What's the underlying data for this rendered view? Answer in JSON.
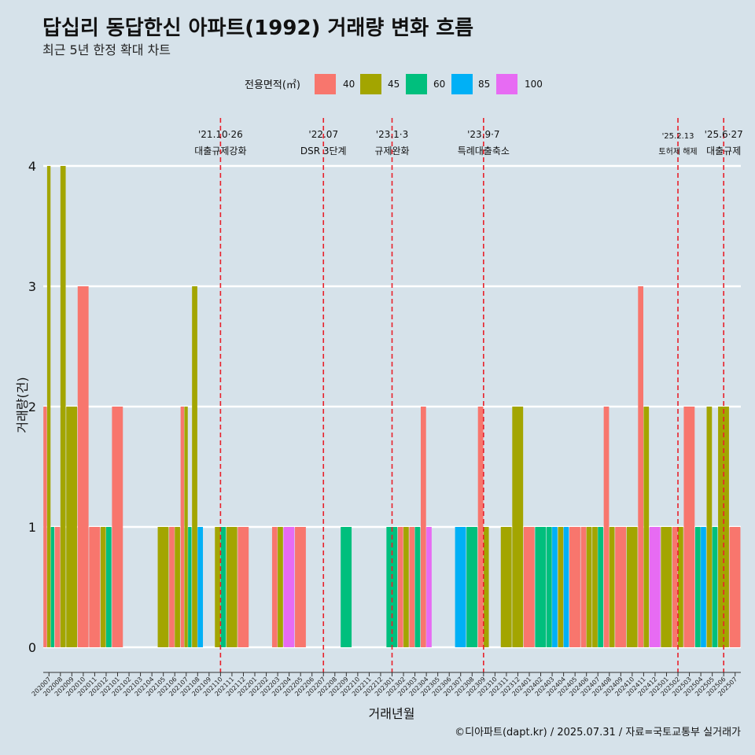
{
  "chart_data": {
    "type": "bar",
    "title": "답십리 동답한신 아파트(1992) 거래량 변화 흐름",
    "subtitle": "최근 5년 한정 확대 차트",
    "xlabel": "거래년월",
    "ylabel": "거래량(건)",
    "ylim": [
      0,
      4
    ],
    "yticks": [
      0,
      1,
      2,
      3,
      4
    ],
    "grid": true,
    "legend": {
      "title": "전용면적(㎡)",
      "position": "top",
      "entries": [
        {
          "label": "40",
          "color": "#f8766d"
        },
        {
          "label": "45",
          "color": "#a3a500"
        },
        {
          "label": "60",
          "color": "#00bf7d"
        },
        {
          "label": "85",
          "color": "#00b0f6"
        },
        {
          "label": "100",
          "color": "#e76bf3"
        }
      ]
    },
    "categories": [
      "202007",
      "202008",
      "202009",
      "202010",
      "202011",
      "202012",
      "202101",
      "202102",
      "202103",
      "202104",
      "202105",
      "202106",
      "202107",
      "202108",
      "202109",
      "202110",
      "202111",
      "202112",
      "202201",
      "202202",
      "202203",
      "202204",
      "202205",
      "202206",
      "202207",
      "202208",
      "202209",
      "202210",
      "202211",
      "202212",
      "202301",
      "202302",
      "202303",
      "202304",
      "202305",
      "202306",
      "202307",
      "202308",
      "202309",
      "202310",
      "202311",
      "202312",
      "202401",
      "202402",
      "202403",
      "202404",
      "202405",
      "202406",
      "202407",
      "202408",
      "202409",
      "202410",
      "202411",
      "202412",
      "202501",
      "202502",
      "202503",
      "202504",
      "202505",
      "202506",
      "202507"
    ],
    "data": {
      "202007": [
        {
          "area": "40",
          "count": 2
        },
        {
          "area": "45",
          "count": 4
        },
        {
          "area": "60",
          "count": 1
        }
      ],
      "202008": [
        {
          "area": "40",
          "count": 1
        },
        {
          "area": "45",
          "count": 4
        }
      ],
      "202009": [
        {
          "area": "45",
          "count": 2
        }
      ],
      "202010": [
        {
          "area": "40",
          "count": 3
        }
      ],
      "202011": [
        {
          "area": "40",
          "count": 1
        }
      ],
      "202012": [
        {
          "area": "45",
          "count": 1
        },
        {
          "area": "60",
          "count": 1
        }
      ],
      "202101": [
        {
          "area": "40",
          "count": 2
        }
      ],
      "202105": [
        {
          "area": "45",
          "count": 1
        }
      ],
      "202106": [
        {
          "area": "40",
          "count": 1
        },
        {
          "area": "45",
          "count": 1
        }
      ],
      "202107": [
        {
          "area": "40",
          "count": 2
        },
        {
          "area": "45",
          "count": 2
        },
        {
          "area": "60",
          "count": 1
        }
      ],
      "202108": [
        {
          "area": "45",
          "count": 3
        },
        {
          "area": "85",
          "count": 1
        }
      ],
      "202110": [
        {
          "area": "45",
          "count": 1
        },
        {
          "area": "60",
          "count": 1
        }
      ],
      "202111": [
        {
          "area": "45",
          "count": 1
        }
      ],
      "202112": [
        {
          "area": "40",
          "count": 1
        }
      ],
      "202203": [
        {
          "area": "40",
          "count": 1
        },
        {
          "area": "45",
          "count": 1
        }
      ],
      "202204": [
        {
          "area": "100",
          "count": 1
        }
      ],
      "202205": [
        {
          "area": "40",
          "count": 1
        }
      ],
      "202209": [
        {
          "area": "60",
          "count": 1
        }
      ],
      "202301": [
        {
          "area": "60",
          "count": 1
        }
      ],
      "202302": [
        {
          "area": "40",
          "count": 1
        },
        {
          "area": "45",
          "count": 1
        }
      ],
      "202303": [
        {
          "area": "40",
          "count": 1
        },
        {
          "area": "60",
          "count": 1
        }
      ],
      "202304": [
        {
          "area": "40",
          "count": 2
        },
        {
          "area": "100",
          "count": 1
        }
      ],
      "202307": [
        {
          "area": "85",
          "count": 1
        }
      ],
      "202308": [
        {
          "area": "60",
          "count": 1
        }
      ],
      "202309": [
        {
          "area": "40",
          "count": 2
        },
        {
          "area": "45",
          "count": 1
        }
      ],
      "202311": [
        {
          "area": "45",
          "count": 1
        }
      ],
      "202312": [
        {
          "area": "45",
          "count": 2
        }
      ],
      "202401": [
        {
          "area": "40",
          "count": 1
        }
      ],
      "202402": [
        {
          "area": "60",
          "count": 1
        }
      ],
      "202403": [
        {
          "area": "60",
          "count": 1
        },
        {
          "area": "85",
          "count": 1
        }
      ],
      "202404": [
        {
          "area": "45",
          "count": 1
        },
        {
          "area": "85",
          "count": 1
        }
      ],
      "202405": [
        {
          "area": "40",
          "count": 1
        }
      ],
      "202406": [
        {
          "area": "40",
          "count": 1
        },
        {
          "area": "45",
          "count": 1
        }
      ],
      "202407": [
        {
          "area": "45",
          "count": 1
        },
        {
          "area": "60",
          "count": 1
        }
      ],
      "202408": [
        {
          "area": "40",
          "count": 2
        },
        {
          "area": "45",
          "count": 1
        }
      ],
      "202409": [
        {
          "area": "40",
          "count": 1
        }
      ],
      "202410": [
        {
          "area": "45",
          "count": 1
        }
      ],
      "202411": [
        {
          "area": "40",
          "count": 3
        },
        {
          "area": "45",
          "count": 2
        }
      ],
      "202412": [
        {
          "area": "100",
          "count": 1
        }
      ],
      "202501": [
        {
          "area": "45",
          "count": 1
        }
      ],
      "202502": [
        {
          "area": "40",
          "count": 1
        },
        {
          "area": "45",
          "count": 1
        }
      ],
      "202503": [
        {
          "area": "40",
          "count": 2
        }
      ],
      "202504": [
        {
          "area": "60",
          "count": 1
        },
        {
          "area": "85",
          "count": 1
        }
      ],
      "202505": [
        {
          "area": "45",
          "count": 2
        },
        {
          "area": "60",
          "count": 1
        }
      ],
      "202506": [
        {
          "area": "45",
          "count": 2
        }
      ],
      "202507": [
        {
          "area": "40",
          "count": 1
        }
      ]
    },
    "events": [
      {
        "category": "202110",
        "date_label": "'21.10·26",
        "text": "대출규제강화"
      },
      {
        "category": "202207",
        "date_label": "'22.07",
        "text": "DSR 3단계"
      },
      {
        "category": "202301",
        "date_label": "'23.1·3",
        "text": "규제완화"
      },
      {
        "category": "202309",
        "date_label": "'23.9·7",
        "text": "특례대출축소"
      },
      {
        "category": "202502",
        "date_label": "'25.2.13",
        "text": "토허제 해제"
      },
      {
        "category": "202506",
        "date_label": "'25.6·27",
        "text": "대출규제"
      }
    ],
    "event_line_color": "#e8202a",
    "caption": "©디아파트(dapt.kr) / 2025.07.31 / 자료=국토교통부 실거래가"
  }
}
